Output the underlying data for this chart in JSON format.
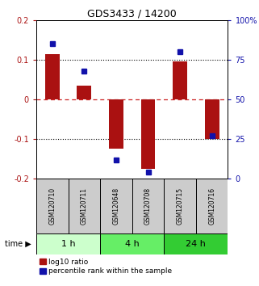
{
  "title": "GDS3433 / 14200",
  "samples": [
    "GSM120710",
    "GSM120711",
    "GSM120648",
    "GSM120708",
    "GSM120715",
    "GSM120716"
  ],
  "log10_ratio": [
    0.115,
    0.035,
    -0.125,
    -0.175,
    0.095,
    -0.1
  ],
  "percentile_rank": [
    0.85,
    0.68,
    0.12,
    0.04,
    0.8,
    0.27
  ],
  "groups": [
    {
      "label": "1 h",
      "indices": [
        0,
        1
      ],
      "color": "#ccffcc"
    },
    {
      "label": "4 h",
      "indices": [
        2,
        3
      ],
      "color": "#66ee66"
    },
    {
      "label": "24 h",
      "indices": [
        4,
        5
      ],
      "color": "#33cc33"
    }
  ],
  "ylim_left": [
    -0.2,
    0.2
  ],
  "ylim_right": [
    0.0,
    1.0
  ],
  "yticks_left": [
    -0.2,
    -0.1,
    0.0,
    0.1,
    0.2
  ],
  "ytick_labels_left": [
    "-0.2",
    "-0.1",
    "0",
    "0.1",
    "0.2"
  ],
  "yticks_right": [
    0.0,
    0.25,
    0.5,
    0.75,
    1.0
  ],
  "ytick_labels_right": [
    "0",
    "25",
    "50",
    "75",
    "100%"
  ],
  "bar_color": "#aa1111",
  "dot_color": "#1111aa",
  "hline_color": "#cc2222",
  "grid_color": "#000000",
  "bg_plot": "#ffffff",
  "bg_sample_box": "#cccccc",
  "legend_bar": "log10 ratio",
  "legend_dot": "percentile rank within the sample",
  "dotted_lines": [
    -0.1,
    0.1
  ],
  "zero_line": 0.0
}
